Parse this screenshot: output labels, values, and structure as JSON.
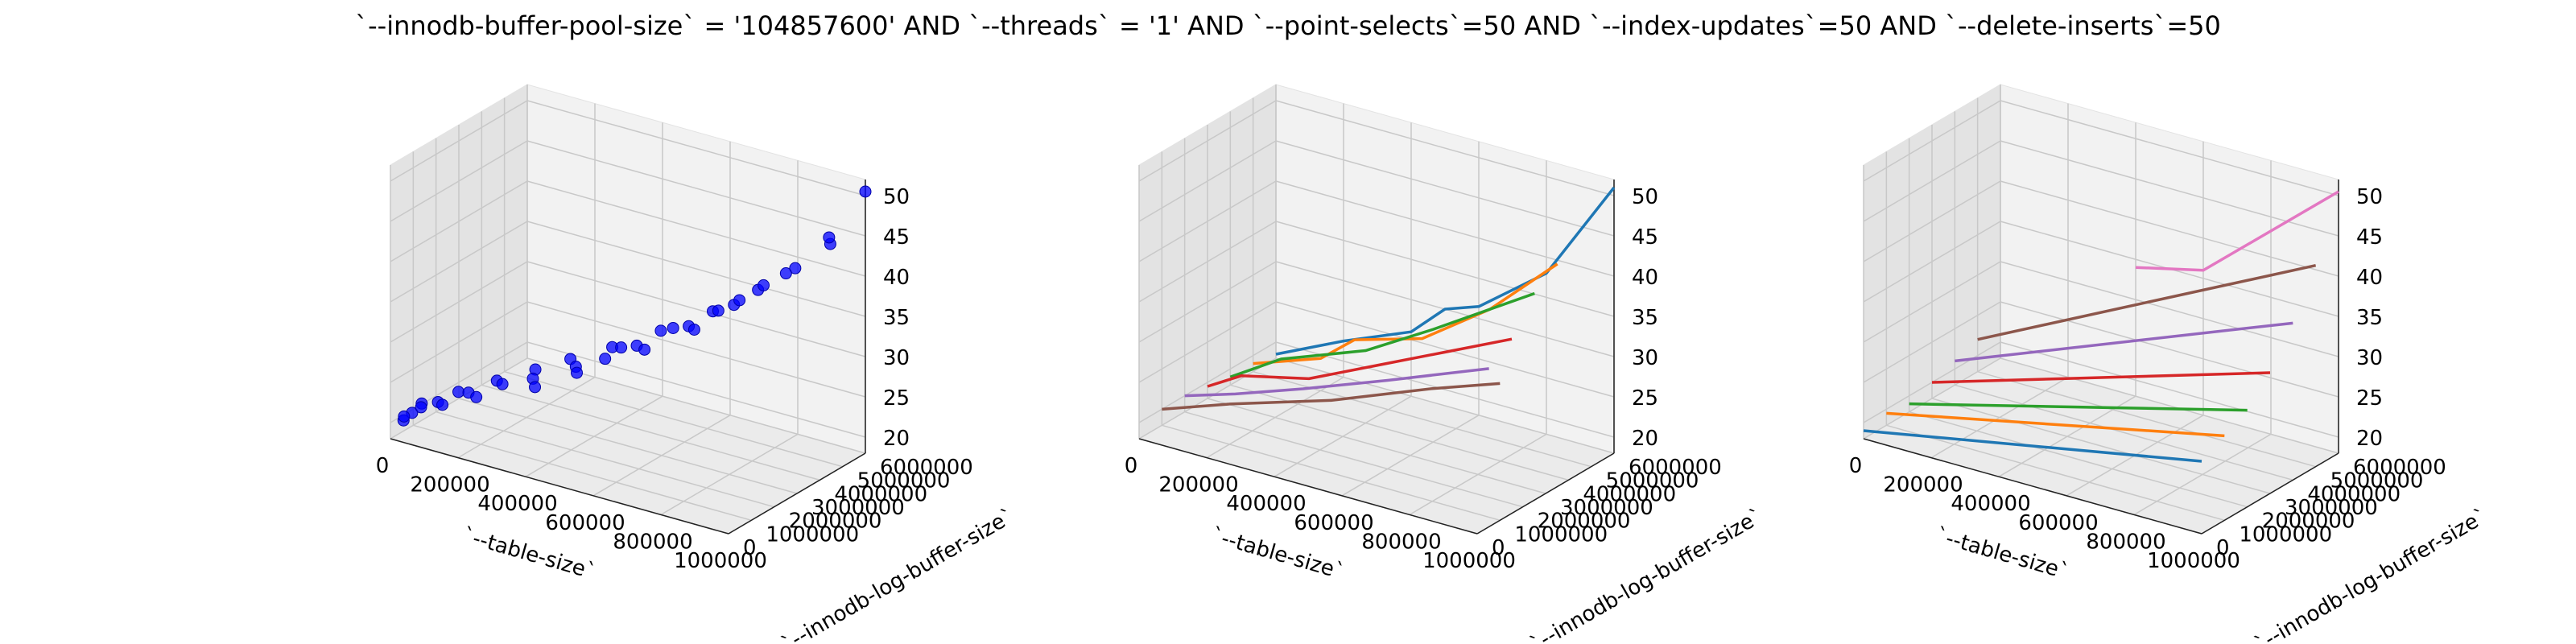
{
  "figure": {
    "title": "`--innodb-buffer-pool-size` = '104857600' AND `--threads` = '1'  AND `--point-selects`=50 AND `--index-updates`=50 AND `--delete-inserts`=50"
  },
  "colors": {
    "scatter": "#0000ff",
    "pane_light": "#f2f2f2",
    "pane_mid": "#ebebeb",
    "pane_dark": "#e3e3e3",
    "grid": "#c8c8c8",
    "series": [
      "#1f77b4",
      "#ff7f0e",
      "#2ca02c",
      "#d62728",
      "#9467bd",
      "#8c564b",
      "#e377c2"
    ]
  },
  "chart_data": [
    {
      "type": "scatter",
      "xlabel": "`--table-size`",
      "ylabel": "`--innodb-log-buffer-size`",
      "xlim": [
        0,
        1000000
      ],
      "ylim": [
        0,
        6000000
      ],
      "zlim": [
        18,
        52
      ],
      "xticks": [
        "0",
        "200000",
        "400000",
        "600000",
        "800000",
        "1000000"
      ],
      "yticks": [
        "0",
        "1000000",
        "2000000",
        "3000000",
        "4000000",
        "5000000",
        "6000000"
      ],
      "zticks": [
        "20",
        "25",
        "30",
        "35",
        "40",
        "45",
        "50"
      ],
      "points": [
        [
          5000,
          500000,
          19.5
        ],
        [
          10000,
          800000,
          20.0
        ],
        [
          20000,
          300000,
          20.5
        ],
        [
          25000,
          1000000,
          21.0
        ],
        [
          50000,
          600000,
          21.5
        ],
        [
          80000,
          900000,
          22.0
        ],
        [
          100000,
          1500000,
          22.5
        ],
        [
          120000,
          500000,
          22.8
        ],
        [
          150000,
          1200000,
          23.5
        ],
        [
          180000,
          2000000,
          24.0
        ],
        [
          200000,
          800000,
          24.2
        ],
        [
          230000,
          1500000,
          25.0
        ],
        [
          260000,
          2500000,
          25.5
        ],
        [
          300000,
          1800000,
          26.0
        ],
        [
          330000,
          3000000,
          26.8
        ],
        [
          360000,
          1000000,
          27.0
        ],
        [
          400000,
          2200000,
          28.0
        ],
        [
          420000,
          3500000,
          28.5
        ],
        [
          450000,
          1500000,
          29.0
        ],
        [
          480000,
          3000000,
          30.0
        ],
        [
          500000,
          2000000,
          30.5
        ],
        [
          530000,
          4000000,
          31.0
        ],
        [
          560000,
          2500000,
          32.0
        ],
        [
          600000,
          3500000,
          33.0
        ],
        [
          630000,
          1800000,
          33.5
        ],
        [
          650000,
          4500000,
          34.0
        ],
        [
          680000,
          3000000,
          35.0
        ],
        [
          700000,
          4000000,
          35.5
        ],
        [
          730000,
          2500000,
          36.0
        ],
        [
          750000,
          5000000,
          37.0
        ],
        [
          780000,
          3500000,
          38.0
        ],
        [
          800000,
          4500000,
          39.0
        ],
        [
          830000,
          3000000,
          40.0
        ],
        [
          860000,
          5000000,
          41.0
        ],
        [
          900000,
          4000000,
          42.5
        ],
        [
          930000,
          5500000,
          44.0
        ],
        [
          960000,
          5000000,
          46.0
        ],
        [
          1000000,
          6000000,
          50.5
        ]
      ]
    },
    {
      "type": "line",
      "xlabel": "`--table-size`",
      "ylabel": "`--innodb-log-buffer-size`",
      "xlim": [
        0,
        1000000
      ],
      "ylim": [
        0,
        6000000
      ],
      "zlim": [
        18,
        52
      ],
      "xticks": [
        "0",
        "200000",
        "400000",
        "600000",
        "800000",
        "1000000"
      ],
      "yticks": [
        "0",
        "1000000",
        "2000000",
        "3000000",
        "4000000",
        "5000000",
        "6000000"
      ],
      "zticks": [
        "20",
        "25",
        "30",
        "35",
        "40",
        "45",
        "50"
      ],
      "series": [
        {
          "points": [
            [
              0,
              6000000,
              18.5
            ],
            [
              200000,
              6000000,
              22.5
            ],
            [
              400000,
              6000000,
              26.0
            ],
            [
              500000,
              6000000,
              30.0
            ],
            [
              600000,
              6000000,
              31.5
            ],
            [
              800000,
              6000000,
              38.0
            ],
            [
              1000000,
              6000000,
              51.0
            ]
          ]
        },
        {
          "points": [
            [
              0,
              5000000,
              19.0
            ],
            [
              200000,
              5000000,
              22.0
            ],
            [
              300000,
              5000000,
              25.5
            ],
            [
              500000,
              5000000,
              28.0
            ],
            [
              700000,
              5000000,
              34.0
            ],
            [
              900000,
              5000000,
              42.0
            ]
          ]
        },
        {
          "points": [
            [
              0,
              4000000,
              19.0
            ],
            [
              150000,
              4000000,
              23.0
            ],
            [
              400000,
              4000000,
              27.0
            ],
            [
              600000,
              4000000,
              32.0
            ],
            [
              900000,
              4000000,
              40.0
            ]
          ]
        },
        {
          "points": [
            [
              0,
              3000000,
              19.5
            ],
            [
              100000,
              3000000,
              22.0
            ],
            [
              300000,
              3000000,
              24.0
            ],
            [
              500000,
              3000000,
              28.0
            ],
            [
              700000,
              3000000,
              32.0
            ],
            [
              900000,
              3000000,
              36.0
            ]
          ]
        },
        {
          "points": [
            [
              0,
              2000000,
              20.0
            ],
            [
              150000,
              2000000,
              22.0
            ],
            [
              350000,
              2000000,
              25.0
            ],
            [
              600000,
              2000000,
              29.0
            ],
            [
              900000,
              2000000,
              34.0
            ]
          ]
        },
        {
          "points": [
            [
              0,
              1000000,
              20.0
            ],
            [
              200000,
              1000000,
              23.0
            ],
            [
              500000,
              1000000,
              27.0
            ],
            [
              800000,
              1000000,
              32.0
            ],
            [
              1000000,
              1000000,
              35.0
            ]
          ]
        }
      ]
    },
    {
      "type": "line",
      "xlabel": "`--table-size`",
      "ylabel": "`--innodb-log-buffer-size`",
      "xlim": [
        0,
        1000000
      ],
      "ylim": [
        0,
        6000000
      ],
      "zlim": [
        18,
        52
      ],
      "xticks": [
        "0",
        "200000",
        "400000",
        "600000",
        "800000",
        "1000000"
      ],
      "yticks": [
        "0",
        "1000000",
        "2000000",
        "3000000",
        "4000000",
        "5000000",
        "6000000"
      ],
      "zticks": [
        "20",
        "25",
        "30",
        "35",
        "40",
        "45",
        "50"
      ],
      "series": [
        {
          "points": [
            [
              0,
              0,
              19.0
            ],
            [
              1000000,
              0,
              27.0
            ]
          ]
        },
        {
          "points": [
            [
              0,
              1000000,
              19.5
            ],
            [
              1000000,
              1000000,
              28.5
            ]
          ]
        },
        {
          "points": [
            [
              0,
              2000000,
              19.0
            ],
            [
              1000000,
              2000000,
              30.0
            ]
          ]
        },
        {
          "points": [
            [
              0,
              3000000,
              20.0
            ],
            [
              1000000,
              3000000,
              33.0
            ]
          ]
        },
        {
          "points": [
            [
              0,
              4000000,
              21.0
            ],
            [
              1000000,
              4000000,
              37.5
            ]
          ]
        },
        {
          "points": [
            [
              0,
              5000000,
              22.0
            ],
            [
              1000000,
              5000000,
              43.0
            ]
          ]
        },
        {
          "points": [
            [
              400000,
              6000000,
              34.0
            ],
            [
              600000,
              6000000,
              36.0
            ],
            [
              1000000,
              6000000,
              50.5
            ]
          ]
        }
      ]
    }
  ]
}
